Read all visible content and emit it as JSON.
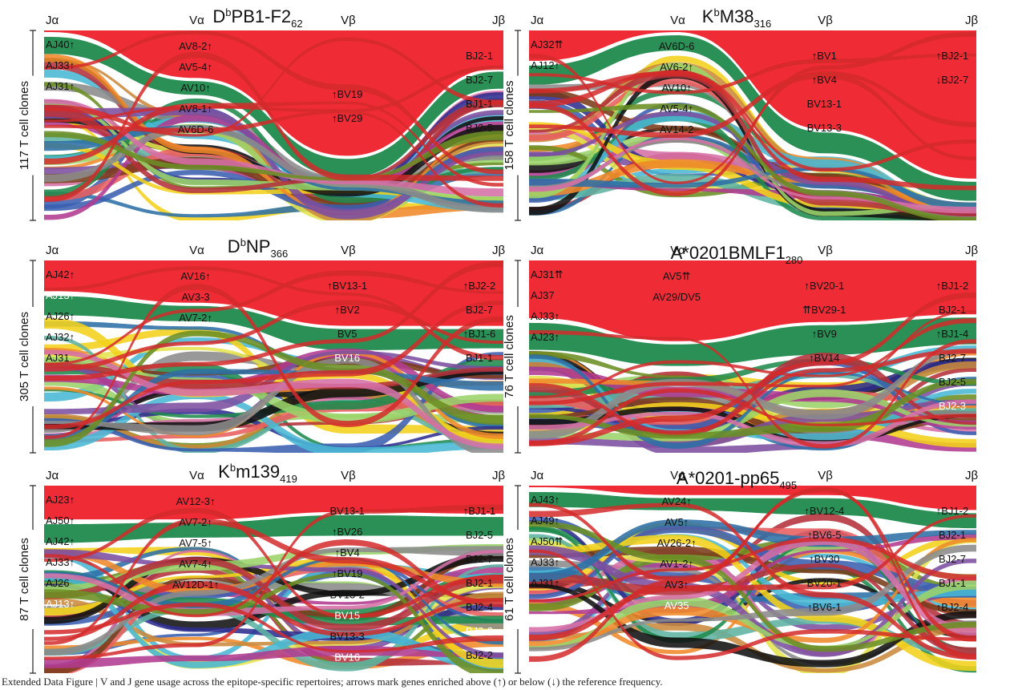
{
  "chart_data": [
    {
      "type": "alluvial",
      "title_prefix": "D",
      "title_sup": "b",
      "title_main": "PB1-F2",
      "title_sub": "62",
      "ylabel": "117 T cell clones",
      "columns": [
        "Jα",
        "Vα",
        "Vβ",
        "Jβ"
      ],
      "labels": {
        "Jα": [
          "AJ40↑",
          "AJ33↑",
          "AJ31↑"
        ],
        "Vα": [
          "AV8-2↑",
          "AV5-4↑",
          "AV10↑",
          "AV8-1↑",
          "AV6D-6"
        ],
        "Vβ": [
          "↑BV19",
          "↑BV29"
        ],
        "Jβ": [
          "BJ2-1",
          "BJ2-7",
          "BJ1-1",
          "BJ2-5"
        ]
      }
    },
    {
      "type": "alluvial",
      "title_prefix": "K",
      "title_sup": "b",
      "title_main": "M38",
      "title_sub": "316",
      "ylabel": "158 T cell clones",
      "columns": [
        "Jα",
        "Vα",
        "Vβ",
        "Jβ"
      ],
      "labels": {
        "Jα": [
          "AJ32⇈",
          "AJ12↑"
        ],
        "Vα": [
          "AV6D-6",
          "AV6-2↑",
          "AV10↑",
          "AV5-4↑",
          "AV14-2"
        ],
        "Vβ": [
          "↑BV1",
          "↑BV4",
          "BV13-1",
          "BV13-3"
        ],
        "Jβ": [
          "↑BJ2-1",
          "↓BJ2-7"
        ]
      }
    },
    {
      "type": "alluvial",
      "title_prefix": "D",
      "title_sup": "b",
      "title_main": "NP",
      "title_sub": "366",
      "ylabel": "305 T cell clones",
      "columns": [
        "Jα",
        "Vα",
        "Vβ",
        "Jβ"
      ],
      "labels": {
        "Jα": [
          "AJ42↑",
          "AJ13↑",
          "AJ26↑",
          "AJ32↑",
          "AJ31"
        ],
        "Vα": [
          "AV16↑",
          "AV3-3",
          "AV7-2↑"
        ],
        "Vβ": [
          "↑BV13-1",
          "↑BV2",
          "BV5",
          "BV16"
        ],
        "Jβ": [
          "↑BJ2-2",
          "BJ2-7",
          "↑BJ1-6",
          "BJ1-1"
        ]
      }
    },
    {
      "type": "alluvial",
      "title_prefix": "",
      "title_sup": "",
      "title_main": "A*0201BMLF1",
      "title_sub": "280",
      "ylabel": "76 T cell clones",
      "columns": [
        "Jα",
        "Vα",
        "Vβ",
        "Jβ"
      ],
      "labels": {
        "Jα": [
          "AJ31⇈",
          "AJ37",
          "AJ33↑",
          "AJ23↑"
        ],
        "Vα": [
          "AV5⇈",
          "AV29/DV5"
        ],
        "Vβ": [
          "↑BV20-1",
          "⇈BV29-1",
          "↑BV9",
          "↑BV14"
        ],
        "Jβ": [
          "↑BJ1-2",
          "BJ2-1",
          "↑BJ1-4",
          "BJ2-7",
          "BJ2-5",
          "BJ2-3"
        ]
      }
    },
    {
      "type": "alluvial",
      "title_prefix": "K",
      "title_sup": "b",
      "title_main": "m139",
      "title_sub": "419",
      "ylabel": "87 T cell clones",
      "columns": [
        "Jα",
        "Vα",
        "Vβ",
        "Jβ"
      ],
      "labels": {
        "Jα": [
          "AJ23↑",
          "AJ50↑",
          "AJ42↑",
          "AJ33↑",
          "AJ26",
          "AJ13↑"
        ],
        "Vα": [
          "AV12-3↑",
          "AV7-2↑",
          "AV7-5↑",
          "AV7-4↑",
          "AV12D-1↑"
        ],
        "Vβ": [
          "BV13-1",
          "↑BV26",
          "↑BV4",
          "↑BV19",
          "BV13-2",
          "BV15",
          "BV13-3",
          "BV16"
        ],
        "Jβ": [
          "↑BJ1-1",
          "BJ2-5",
          "BJ2-7",
          "BJ2-1",
          "BJ2-4",
          "BJ2-3",
          "BJ2-2"
        ]
      }
    },
    {
      "type": "alluvial",
      "title_prefix": "",
      "title_sup": "",
      "title_main": "A*0201-pp65",
      "title_sub": "495",
      "ylabel": "61 T cell clones",
      "columns": [
        "Jα",
        "Vα",
        "Vβ",
        "Jβ"
      ],
      "labels": {
        "Jα": [
          "AJ43↑",
          "AJ49↑",
          "AJ50⇈",
          "AJ33↑",
          "AJ31↑"
        ],
        "Vα": [
          "AV24↑",
          "AV5↑",
          "AV26-2↑",
          "AV1-2↑",
          "AV3↑",
          "AV35"
        ],
        "Vβ": [
          "↑BV12-4",
          "↑BV6-5",
          "↑BV30",
          "BV20-1",
          "↑BV6-1"
        ],
        "Jβ": [
          "↑BJ1-2",
          "BJ2-1",
          "BJ2-7",
          "BJ1-1",
          "↑BJ2-4"
        ]
      }
    }
  ],
  "caption": "Extended Data Figure | V and J gene usage across the epitope-specific repertoires; arrows mark genes enriched above (↑) or below (↓) the reference frequency."
}
